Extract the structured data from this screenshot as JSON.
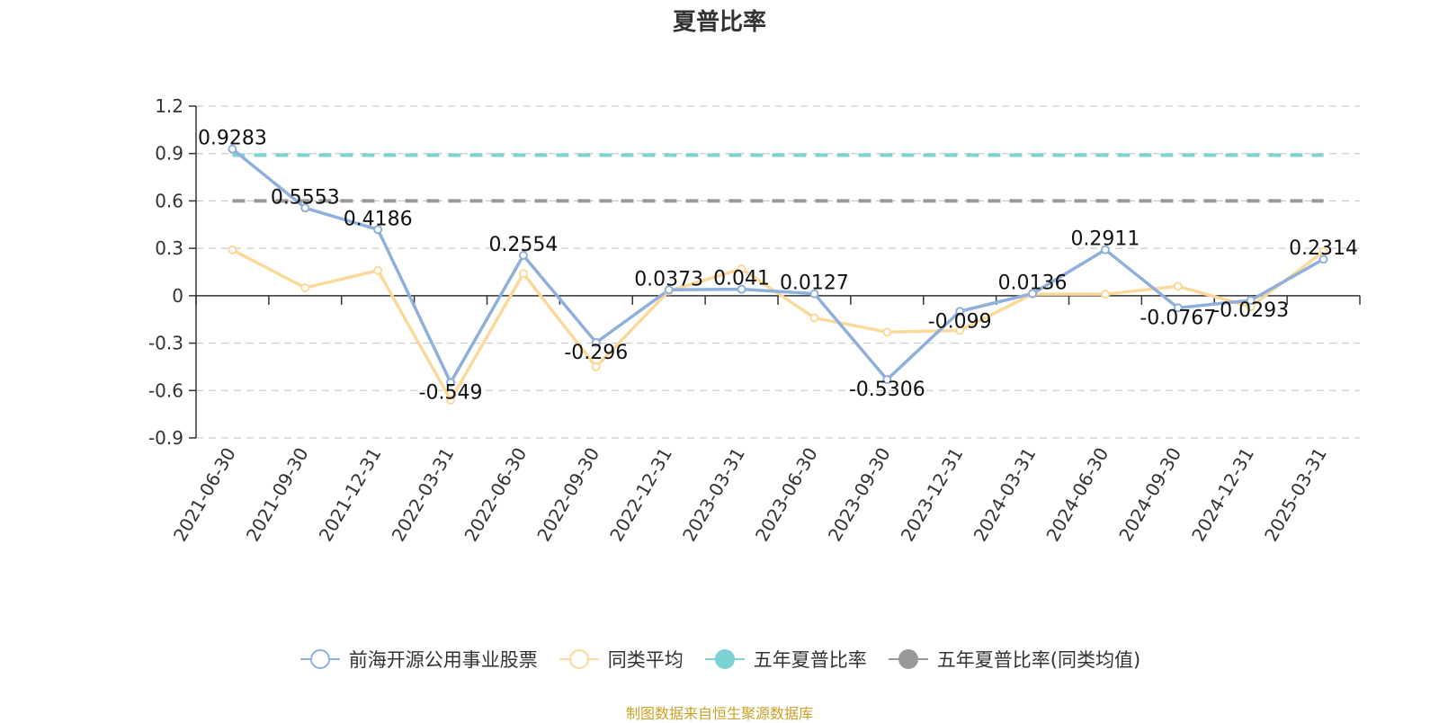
{
  "chart_data": {
    "type": "line",
    "title": "夏普比率",
    "categories": [
      "2021-06-30",
      "2021-09-30",
      "2021-12-31",
      "2022-03-31",
      "2022-06-30",
      "2022-09-30",
      "2022-12-31",
      "2023-03-31",
      "2023-06-30",
      "2023-09-30",
      "2023-12-31",
      "2024-03-31",
      "2024-06-30",
      "2024-09-30",
      "2024-12-31",
      "2025-03-31"
    ],
    "ylim": [
      -0.9,
      1.2
    ],
    "yticks": [
      1.2,
      0.9,
      0.6,
      0.3,
      0,
      -0.3,
      -0.6,
      -0.9
    ],
    "ytick_labels": [
      "1.2",
      "0.9",
      "0.6",
      "0.3",
      "0",
      "-0.3",
      "-0.6",
      "-0.9"
    ],
    "grid": true,
    "legend_position": "bottom",
    "series": [
      {
        "name": "前海开源公用事业股票",
        "color": "#8eb0db",
        "values": [
          0.9283,
          0.5553,
          0.4186,
          -0.549,
          0.2554,
          -0.296,
          0.0373,
          0.041,
          0.0127,
          -0.5306,
          -0.099,
          0.0136,
          0.2911,
          -0.0767,
          -0.0293,
          0.2314
        ],
        "labels": [
          "0.9283",
          "0.5553",
          "0.4186",
          "-0.549",
          "0.2554",
          "-0.296",
          "0.0373",
          "0.041",
          "0.0127",
          "-0.5306",
          "-0.099",
          "0.0136",
          "0.2911",
          "-0.0767",
          "-0.0293",
          "0.2314"
        ]
      },
      {
        "name": "同类平均",
        "color": "#fcd99a",
        "values": [
          0.29,
          0.05,
          0.16,
          -0.66,
          0.14,
          -0.45,
          0.03,
          0.17,
          -0.14,
          -0.23,
          -0.22,
          0.01,
          0.01,
          0.06,
          -0.07,
          0.28
        ]
      },
      {
        "name": "五年夏普比率",
        "color": "#7dd3d3",
        "constant": 0.89,
        "dashed": true
      },
      {
        "name": "五年夏普比率(同类均值)",
        "color": "#999999",
        "constant": 0.6,
        "dashed": true
      }
    ]
  },
  "footer": {
    "source": "制图数据来自恒生聚源数据库"
  }
}
